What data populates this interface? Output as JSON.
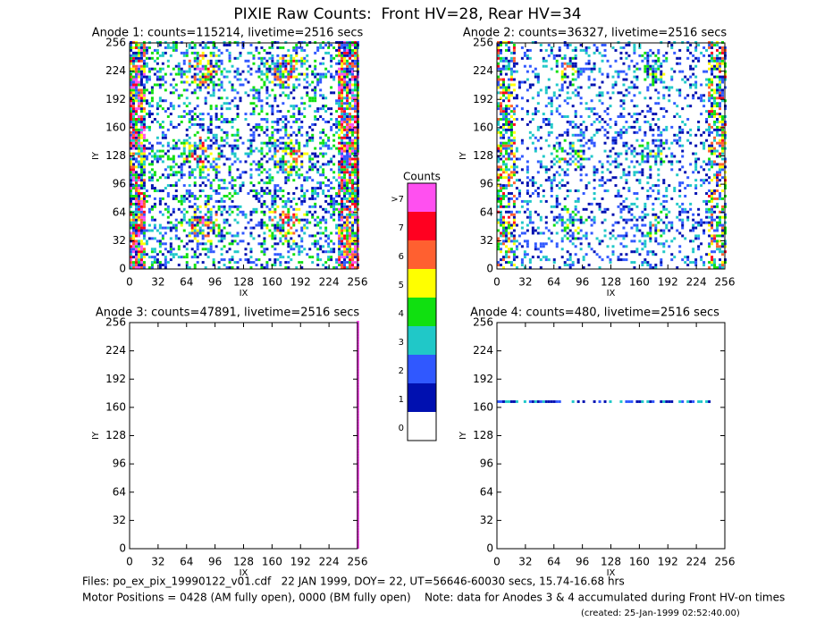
{
  "title": "PIXIE Raw Counts:  Front HV=28, Rear HV=34",
  "chart_data": [
    {
      "type": "heatmap",
      "title": "Anode 1: counts=115214, livetime=2516 secs",
      "x_label": "IX",
      "y_label": "IY",
      "xlim": [
        0,
        256
      ],
      "ylim": [
        0,
        256
      ],
      "xticks": [
        0,
        32,
        64,
        96,
        128,
        160,
        192,
        224,
        256
      ],
      "yticks": [
        0,
        32,
        64,
        96,
        128,
        160,
        192,
        224,
        256
      ]
    },
    {
      "type": "heatmap",
      "title": "Anode 2: counts=36327, livetime=2516 secs",
      "x_label": "IX",
      "y_label": "IY",
      "xlim": [
        0,
        256
      ],
      "ylim": [
        0,
        256
      ],
      "xticks": [
        0,
        32,
        64,
        96,
        128,
        160,
        192,
        224,
        256
      ],
      "yticks": [
        0,
        32,
        64,
        96,
        128,
        160,
        192,
        224,
        256
      ]
    },
    {
      "type": "heatmap",
      "title": "Anode 3: counts=47891, livetime=2516 secs",
      "x_label": "IX",
      "y_label": "IY",
      "xlim": [
        0,
        256
      ],
      "ylim": [
        0,
        256
      ],
      "xticks": [
        0,
        32,
        64,
        96,
        128,
        160,
        192,
        224,
        256
      ],
      "yticks": [
        0,
        32,
        64,
        96,
        128,
        160,
        192,
        224,
        256
      ]
    },
    {
      "type": "heatmap",
      "title": "Anode 4: counts=480, livetime=2516 secs",
      "x_label": "IX",
      "y_label": "IY",
      "xlim": [
        0,
        256
      ],
      "ylim": [
        0,
        256
      ],
      "xticks": [
        0,
        32,
        64,
        96,
        128,
        160,
        192,
        224,
        256
      ],
      "yticks": [
        0,
        32,
        64,
        96,
        128,
        160,
        192,
        224,
        256
      ]
    }
  ],
  "colorbar": {
    "title": "Counts",
    "labels": [
      "0",
      "1",
      "2",
      "3",
      "4",
      "5",
      "6",
      "7",
      ">7"
    ],
    "colors": [
      "#ffffff",
      "#0010b0",
      "#3058ff",
      "#20c8c8",
      "#10e010",
      "#ffff00",
      "#ff6030",
      "#ff0020",
      "#ff50f0"
    ]
  },
  "footer": {
    "files": "Files: po_ex_pix_19990122_v01.cdf   22 JAN 1999, DOY= 22, UT=56646-60030 secs, 15.74-16.68 hrs",
    "motor": "Motor Positions = 0428 (AM fully open), 0000 (BM fully open)    Note: data for Anodes 3 & 4 accumulated during Front HV-on times",
    "created": "(created: 25-Jan-1999 02:52:40.00)"
  }
}
